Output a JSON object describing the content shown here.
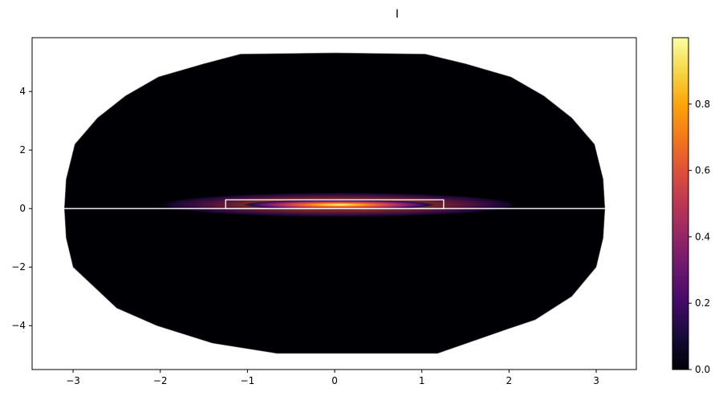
{
  "chart_data": {
    "type": "heatmap",
    "title": "I",
    "xlabel": "",
    "ylabel": "",
    "xlim": [
      -3.47,
      3.46
    ],
    "ylim": [
      -5.5,
      5.84
    ],
    "xticks": [
      -3,
      -2,
      -1,
      0,
      1,
      2,
      3
    ],
    "yticks": [
      -4,
      -2,
      0,
      2,
      4
    ],
    "grid": false,
    "colormap": "inferno",
    "colorbar": {
      "range": [
        0.0,
        1.0
      ],
      "ticks": [
        "0.0",
        "0.2",
        "0.4",
        "0.6",
        "0.8"
      ]
    },
    "domain_outline": [
      [
        -3.1,
        0
      ],
      [
        -3.08,
        1.0
      ],
      [
        -2.98,
        2.2
      ],
      [
        -2.72,
        3.1
      ],
      [
        -2.4,
        3.85
      ],
      [
        -2.02,
        4.5
      ],
      [
        -1.5,
        4.95
      ],
      [
        -1.08,
        5.28
      ],
      [
        0,
        5.32
      ],
      [
        1.04,
        5.28
      ],
      [
        1.5,
        4.95
      ],
      [
        2.02,
        4.5
      ],
      [
        2.4,
        3.85
      ],
      [
        2.72,
        3.1
      ],
      [
        2.98,
        2.2
      ],
      [
        3.08,
        1.0
      ],
      [
        3.1,
        0
      ],
      [
        3.08,
        -1.0
      ],
      [
        3.0,
        -2.0
      ],
      [
        2.72,
        -3.0
      ],
      [
        2.3,
        -3.8
      ],
      [
        2.0,
        -4.1
      ],
      [
        1.18,
        -4.95
      ],
      [
        -0.66,
        -4.95
      ],
      [
        -1.4,
        -4.6
      ],
      [
        -2.04,
        -4.0
      ],
      [
        -2.5,
        -3.4
      ],
      [
        -3.0,
        -2.0
      ],
      [
        -3.08,
        -1.0
      ]
    ],
    "white_line": {
      "x": [
        -3.1,
        3.1
      ],
      "y": 0
    },
    "white_rectangle": {
      "x": [
        -1.25,
        1.25
      ],
      "y": [
        0,
        0.3
      ]
    },
    "hotspot": {
      "center": [
        0.05,
        0.13
      ],
      "half_width": 1.1,
      "half_height": 0.3,
      "peak_value": 0.99
    },
    "background_value": 0.0
  }
}
